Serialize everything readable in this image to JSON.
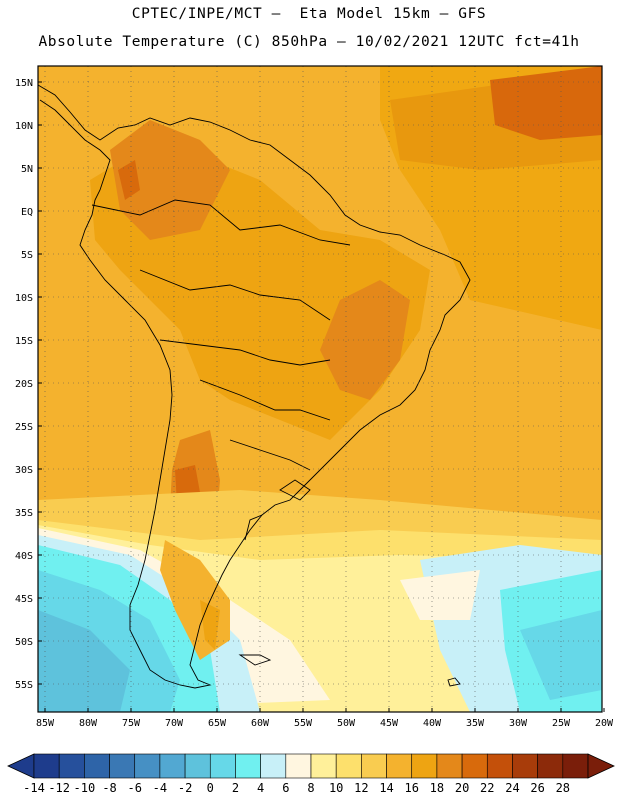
{
  "header": {
    "line1": "CPTEC/INPE/MCT –  Eta Model 15km – GFS",
    "line2": "Absolute Temperature (C) 850hPa – 10/02/2021 12UTC fct=41h"
  },
  "map": {
    "lat_labels": [
      "15N",
      "10N",
      "5N",
      "EQ",
      "5S",
      "10S",
      "15S",
      "20S",
      "25S",
      "30S",
      "35S",
      "40S",
      "45S",
      "50S",
      "55S"
    ],
    "lon_labels": [
      "85W",
      "80W",
      "75W",
      "70W",
      "65W",
      "60W",
      "55W",
      "50W",
      "45W",
      "40W",
      "35W",
      "30W",
      "25W",
      "20W"
    ],
    "lon_range": [
      -85,
      -20
    ],
    "lat_range": [
      -58,
      17
    ]
  },
  "colorbar": {
    "labels": [
      "-14",
      "-12",
      "-10",
      "-8",
      "-6",
      "-4",
      "-2",
      "0",
      "2",
      "4",
      "6",
      "8",
      "10",
      "12",
      "14",
      "16",
      "18",
      "20",
      "22",
      "24",
      "26",
      "28"
    ],
    "colors": [
      "#1e3c8c",
      "#26509c",
      "#2e64a8",
      "#3a78b4",
      "#4690c4",
      "#52a8d2",
      "#5ec2dc",
      "#66d8e8",
      "#70f0f0",
      "#c8f0f8",
      "#fff6e0",
      "#fff09a",
      "#fde06c",
      "#f9cc50",
      "#f4b22e",
      "#eea412",
      "#e4881a",
      "#d86a0c",
      "#c4500a",
      "#a83c0a",
      "#8c2a0a",
      "#7a1e0a"
    ],
    "left_arrow_color": "#1e3c8c",
    "right_arrow_color": "#7a1e0a"
  }
}
